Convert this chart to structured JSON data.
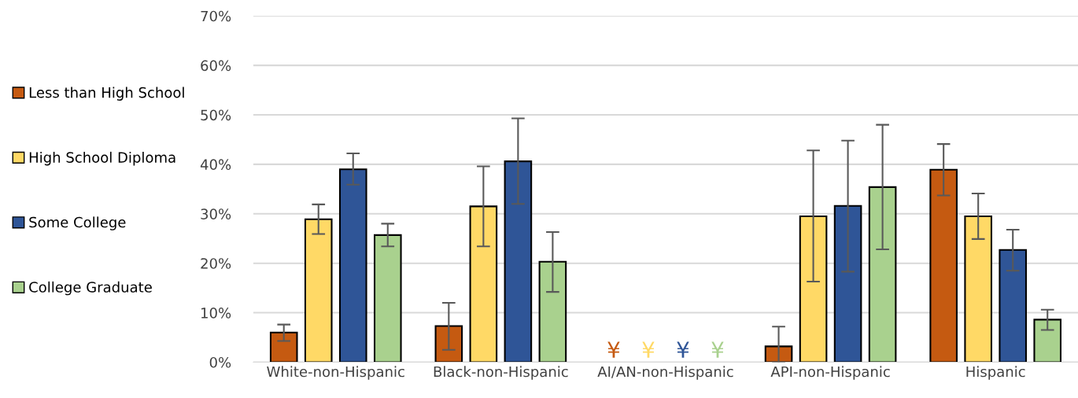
{
  "chart_data": {
    "type": "bar",
    "categories": [
      "White-non-Hispanic",
      "Black-non-Hispanic",
      "AI/AN-non-Hispanic",
      "API-non-Hispanic",
      "Hispanic"
    ],
    "series": [
      {
        "name": "Less than High School",
        "color": "#c55a11",
        "values": [
          6.0,
          7.3,
          null,
          3.2,
          38.9
        ],
        "errors": [
          [
            4.3,
            7.6
          ],
          [
            2.5,
            12.0
          ],
          null,
          [
            0,
            7.2
          ],
          [
            33.7,
            44.1
          ]
        ],
        "value_labels": [
          null,
          null,
          "¥",
          null,
          null
        ]
      },
      {
        "name": "High School Diploma",
        "color": "#ffd966",
        "values": [
          28.9,
          31.5,
          null,
          29.5,
          29.5
        ],
        "errors": [
          [
            25.9,
            31.9
          ],
          [
            23.4,
            39.6
          ],
          null,
          [
            16.3,
            42.8
          ],
          [
            24.9,
            34.1
          ]
        ],
        "value_labels": [
          null,
          null,
          "¥",
          null,
          null
        ]
      },
      {
        "name": "Some College",
        "color": "#2f5597",
        "values": [
          39.0,
          40.6,
          null,
          31.6,
          22.7
        ],
        "errors": [
          [
            35.9,
            42.2
          ],
          [
            32.0,
            49.3
          ],
          null,
          [
            18.3,
            44.8
          ],
          [
            18.5,
            26.8
          ]
        ],
        "value_labels": [
          null,
          null,
          "¥",
          null,
          null
        ]
      },
      {
        "name": "College Graduate",
        "color": "#a9d18e",
        "values": [
          25.7,
          20.3,
          null,
          35.4,
          8.6
        ],
        "errors": [
          [
            23.4,
            28.0
          ],
          [
            14.2,
            26.3
          ],
          null,
          [
            22.8,
            48.0
          ],
          [
            6.5,
            10.6
          ]
        ],
        "value_labels": [
          null,
          null,
          "¥",
          null,
          null
        ]
      }
    ],
    "ylim": [
      0,
      70
    ],
    "yticks": [
      {
        "value": 0,
        "label": "0%"
      },
      {
        "value": 10,
        "label": "10%"
      },
      {
        "value": 20,
        "label": "20%"
      },
      {
        "value": 30,
        "label": "30%"
      },
      {
        "value": 40,
        "label": "40%"
      },
      {
        "value": 50,
        "label": "50%"
      },
      {
        "value": 60,
        "label": "60%"
      },
      {
        "value": 70,
        "label": "70%"
      }
    ],
    "grid": "y",
    "legend": "left"
  }
}
